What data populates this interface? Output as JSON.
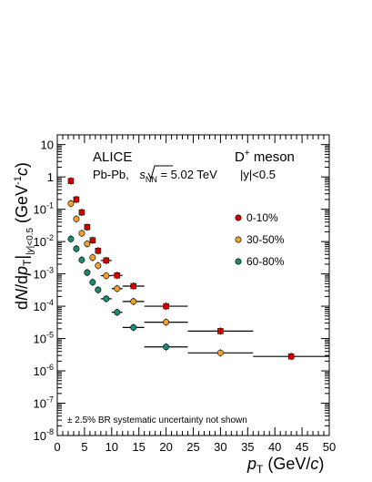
{
  "chart_data": {
    "type": "scatter",
    "log_y": true,
    "xlim": [
      0,
      50
    ],
    "ylim": [
      1e-08,
      20
    ],
    "x_ticks": [
      "0",
      "5",
      "10",
      "15",
      "20",
      "25",
      "30",
      "35",
      "40",
      "45",
      "50"
    ],
    "y_ticks": [
      {
        "base": "10",
        "exp": "-8"
      },
      {
        "base": "10",
        "exp": "-7"
      },
      {
        "base": "10",
        "exp": "-6"
      },
      {
        "base": "10",
        "exp": "-5"
      },
      {
        "base": "10",
        "exp": "-4"
      },
      {
        "base": "10",
        "exp": "-3"
      },
      {
        "base": "10",
        "exp": "-2"
      },
      {
        "base": "10",
        "exp": "-1"
      },
      {
        "base": "1",
        "exp": ""
      },
      {
        "base": "10",
        "exp": ""
      }
    ],
    "xlabel": {
      "main": "p",
      "sub": "T",
      "unit": " (GeV/",
      "unit_italic": "c",
      "unit_end": ")"
    },
    "ylabel": "dN/dp_T |_|y|<0.5 (GeV^-1 c)",
    "annotations": {
      "experiment": "ALICE",
      "particle": "D",
      "particle_sup": "+",
      "particle_suffix": " meson",
      "system": "Pb-Pb, ",
      "sqrt_s": "s",
      "sqrt_sub": "NN",
      "energy": " = 5.02 TeV",
      "rapidity": "|y|<0.5",
      "footnote": "± 2.5% BR systematic uncertainty not shown"
    },
    "legend_position": "right-middle",
    "series": [
      {
        "name": "0-10%",
        "color": "#d40000",
        "marker": "square",
        "points": [
          {
            "x": 2.5,
            "y": 0.75,
            "xerr": 0.5
          },
          {
            "x": 3.5,
            "y": 0.2,
            "xerr": 0.5
          },
          {
            "x": 4.5,
            "y": 0.08,
            "xerr": 0.5
          },
          {
            "x": 5.5,
            "y": 0.028,
            "xerr": 0.5
          },
          {
            "x": 6.5,
            "y": 0.011,
            "xerr": 0.5
          },
          {
            "x": 7.5,
            "y": 0.0052,
            "xerr": 0.5
          },
          {
            "x": 9.0,
            "y": 0.0026,
            "xerr": 1.0
          },
          {
            "x": 11.0,
            "y": 0.0009,
            "xerr": 1.0
          },
          {
            "x": 14.0,
            "y": 0.00042,
            "xerr": 2.0
          },
          {
            "x": 20.0,
            "y": 0.0001,
            "xerr": 4.0
          },
          {
            "x": 30.0,
            "y": 1.7e-05,
            "xerr": 6.0
          },
          {
            "x": 43.0,
            "y": 2.8e-06,
            "xerr": 7.0
          }
        ]
      },
      {
        "name": "30-50%",
        "color": "#f0a030",
        "marker": "circle",
        "points": [
          {
            "x": 2.5,
            "y": 0.15,
            "xerr": 0.5
          },
          {
            "x": 3.5,
            "y": 0.05,
            "xerr": 0.5
          },
          {
            "x": 4.5,
            "y": 0.018,
            "xerr": 0.5
          },
          {
            "x": 5.5,
            "y": 0.0085,
            "xerr": 0.5
          },
          {
            "x": 6.5,
            "y": 0.0032,
            "xerr": 0.5
          },
          {
            "x": 7.5,
            "y": 0.0018,
            "xerr": 0.5
          },
          {
            "x": 9.0,
            "y": 0.00088,
            "xerr": 1.0
          },
          {
            "x": 11.0,
            "y": 0.00035,
            "xerr": 1.0
          },
          {
            "x": 14.0,
            "y": 0.00014,
            "xerr": 2.0
          },
          {
            "x": 20.0,
            "y": 3.2e-05,
            "xerr": 4.0
          },
          {
            "x": 30.0,
            "y": 3.6e-06,
            "xerr": 6.0
          }
        ]
      },
      {
        "name": "60-80%",
        "color": "#1a8a70",
        "marker": "circle",
        "points": [
          {
            "x": 2.5,
            "y": 0.012,
            "xerr": 0.5
          },
          {
            "x": 3.5,
            "y": 0.006,
            "xerr": 0.5
          },
          {
            "x": 4.5,
            "y": 0.0027,
            "xerr": 0.5
          },
          {
            "x": 5.5,
            "y": 0.0011,
            "xerr": 0.5
          },
          {
            "x": 6.5,
            "y": 0.00055,
            "xerr": 0.5
          },
          {
            "x": 7.5,
            "y": 0.00032,
            "xerr": 0.5
          },
          {
            "x": 9.0,
            "y": 0.00017,
            "xerr": 1.0
          },
          {
            "x": 11.0,
            "y": 6.5e-05,
            "xerr": 1.0
          },
          {
            "x": 14.0,
            "y": 2.2e-05,
            "xerr": 2.0
          },
          {
            "x": 20.0,
            "y": 5.5e-06,
            "xerr": 4.0
          }
        ]
      }
    ]
  }
}
